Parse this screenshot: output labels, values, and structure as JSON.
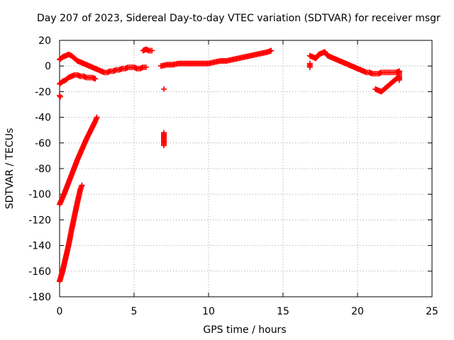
{
  "chart_data": {
    "type": "scatter",
    "title": "Day 207 of 2023, Sidereal Day-to-day VTEC variation (SDTVAR) for receiver msgr",
    "xlabel": "GPS time / hours",
    "ylabel": "SDTVAR / TECUs",
    "xlim": [
      0,
      25
    ],
    "ylim": [
      -180,
      20
    ],
    "xticks": [
      0,
      5,
      10,
      15,
      20,
      25
    ],
    "yticks": [
      20,
      0,
      -20,
      -40,
      -60,
      -80,
      -100,
      -120,
      -140,
      -160,
      -180
    ],
    "grid": true,
    "marker": "+",
    "series": [
      {
        "name": "SDTVAR",
        "color": "#ff0000",
        "segments": [
          {
            "id": "early-upper-arc",
            "points": [
              [
                0.0,
                5
              ],
              [
                0.2,
                7
              ],
              [
                0.4,
                8
              ],
              [
                0.6,
                9
              ],
              [
                0.8,
                8
              ],
              [
                1.0,
                6
              ],
              [
                1.2,
                4
              ],
              [
                1.4,
                3
              ],
              [
                1.6,
                2
              ],
              [
                1.8,
                1
              ],
              [
                2.0,
                0
              ],
              [
                2.2,
                -1
              ],
              [
                2.4,
                -2
              ],
              [
                2.6,
                -3
              ],
              [
                2.8,
                -4
              ],
              [
                3.0,
                -5
              ],
              [
                3.2,
                -5
              ],
              [
                3.4,
                -4
              ],
              [
                3.6,
                -4
              ],
              [
                3.8,
                -3
              ],
              [
                4.0,
                -3
              ],
              [
                4.2,
                -2
              ],
              [
                4.4,
                -2
              ],
              [
                4.6,
                -1
              ],
              [
                4.8,
                -1
              ],
              [
                5.0,
                -1
              ],
              [
                5.2,
                -2
              ],
              [
                5.4,
                -2
              ],
              [
                5.6,
                -1
              ],
              [
                5.8,
                -1
              ]
            ]
          },
          {
            "id": "early-lower-arc",
            "points": [
              [
                0.0,
                -14
              ],
              [
                0.2,
                -12
              ],
              [
                0.4,
                -11
              ],
              [
                0.6,
                -9
              ],
              [
                0.8,
                -8
              ],
              [
                1.0,
                -7
              ],
              [
                1.2,
                -7
              ],
              [
                1.4,
                -8
              ],
              [
                1.6,
                -8
              ],
              [
                1.8,
                -9
              ],
              [
                2.0,
                -9
              ],
              [
                2.2,
                -9
              ],
              [
                2.4,
                -10
              ]
            ]
          },
          {
            "id": "isolated-start",
            "points": [
              [
                0.0,
                -23
              ],
              [
                0.05,
                -24
              ]
            ]
          },
          {
            "id": "steep-rise-a",
            "points": [
              [
                0.0,
                -108
              ],
              [
                0.3,
                -100
              ],
              [
                0.6,
                -91
              ],
              [
                0.9,
                -82
              ],
              [
                1.2,
                -73
              ],
              [
                1.5,
                -65
              ],
              [
                1.8,
                -57
              ],
              [
                2.1,
                -50
              ],
              [
                2.4,
                -43
              ],
              [
                2.5,
                -40
              ]
            ]
          },
          {
            "id": "steep-rise-b",
            "points": [
              [
                0.0,
                -168
              ],
              [
                0.2,
                -160
              ],
              [
                0.4,
                -150
              ],
              [
                0.6,
                -140
              ],
              [
                0.8,
                -128
              ],
              [
                1.0,
                -117
              ],
              [
                1.2,
                -106
              ],
              [
                1.4,
                -96
              ],
              [
                1.5,
                -93
              ]
            ]
          },
          {
            "id": "mid-baseline",
            "points": [
              [
                6.8,
                0
              ],
              [
                7.2,
                1
              ],
              [
                7.6,
                1
              ],
              [
                8.0,
                2
              ],
              [
                8.4,
                2
              ],
              [
                8.8,
                2
              ],
              [
                9.2,
                2
              ],
              [
                9.6,
                2
              ],
              [
                10.0,
                2
              ],
              [
                10.4,
                3
              ],
              [
                10.8,
                4
              ],
              [
                11.2,
                4
              ],
              [
                11.6,
                5
              ],
              [
                12.0,
                6
              ],
              [
                12.4,
                7
              ],
              [
                12.8,
                8
              ],
              [
                13.2,
                9
              ],
              [
                13.6,
                10
              ],
              [
                14.0,
                11
              ],
              [
                14.2,
                12
              ]
            ]
          },
          {
            "id": "upper-dash",
            "points": [
              [
                5.6,
                12
              ],
              [
                5.8,
                13
              ],
              [
                6.0,
                12
              ],
              [
                6.2,
                12
              ]
            ]
          },
          {
            "id": "outliers-7h",
            "points": [
              [
                7.0,
                -18
              ],
              [
                7.0,
                -52
              ],
              [
                7.0,
                -60
              ],
              [
                7.0,
                -62
              ]
            ]
          },
          {
            "id": "late-arc",
            "points": [
              [
                16.8,
                8
              ],
              [
                17.0,
                7
              ],
              [
                17.2,
                6
              ],
              [
                17.4,
                9
              ],
              [
                17.6,
                10
              ],
              [
                17.8,
                11
              ],
              [
                18.0,
                8
              ],
              [
                18.2,
                7
              ],
              [
                18.4,
                6
              ],
              [
                18.6,
                5
              ],
              [
                18.8,
                4
              ],
              [
                19.0,
                3
              ],
              [
                19.2,
                2
              ],
              [
                19.4,
                1
              ],
              [
                19.6,
                0
              ],
              [
                19.8,
                -1
              ],
              [
                20.0,
                -2
              ],
              [
                20.2,
                -3
              ],
              [
                20.4,
                -4
              ],
              [
                20.6,
                -5
              ],
              [
                20.8,
                -5
              ],
              [
                21.0,
                -6
              ],
              [
                21.2,
                -6
              ],
              [
                21.4,
                -6
              ],
              [
                21.6,
                -5
              ],
              [
                21.8,
                -5
              ],
              [
                22.0,
                -5
              ],
              [
                22.2,
                -5
              ],
              [
                22.4,
                -5
              ],
              [
                22.6,
                -5
              ],
              [
                22.8,
                -4
              ]
            ]
          },
          {
            "id": "late-dip",
            "points": [
              [
                21.2,
                -18
              ],
              [
                21.4,
                -19
              ],
              [
                21.6,
                -20
              ],
              [
                21.8,
                -18
              ],
              [
                22.0,
                -16
              ],
              [
                22.2,
                -14
              ],
              [
                22.4,
                -12
              ],
              [
                22.6,
                -10
              ],
              [
                22.8,
                -9
              ]
            ]
          },
          {
            "id": "late-vertical",
            "points": [
              [
                16.8,
                2
              ],
              [
                16.8,
                -1
              ],
              [
                22.8,
                -4
              ],
              [
                22.8,
                -8
              ],
              [
                22.8,
                -11
              ]
            ]
          }
        ]
      }
    ]
  }
}
